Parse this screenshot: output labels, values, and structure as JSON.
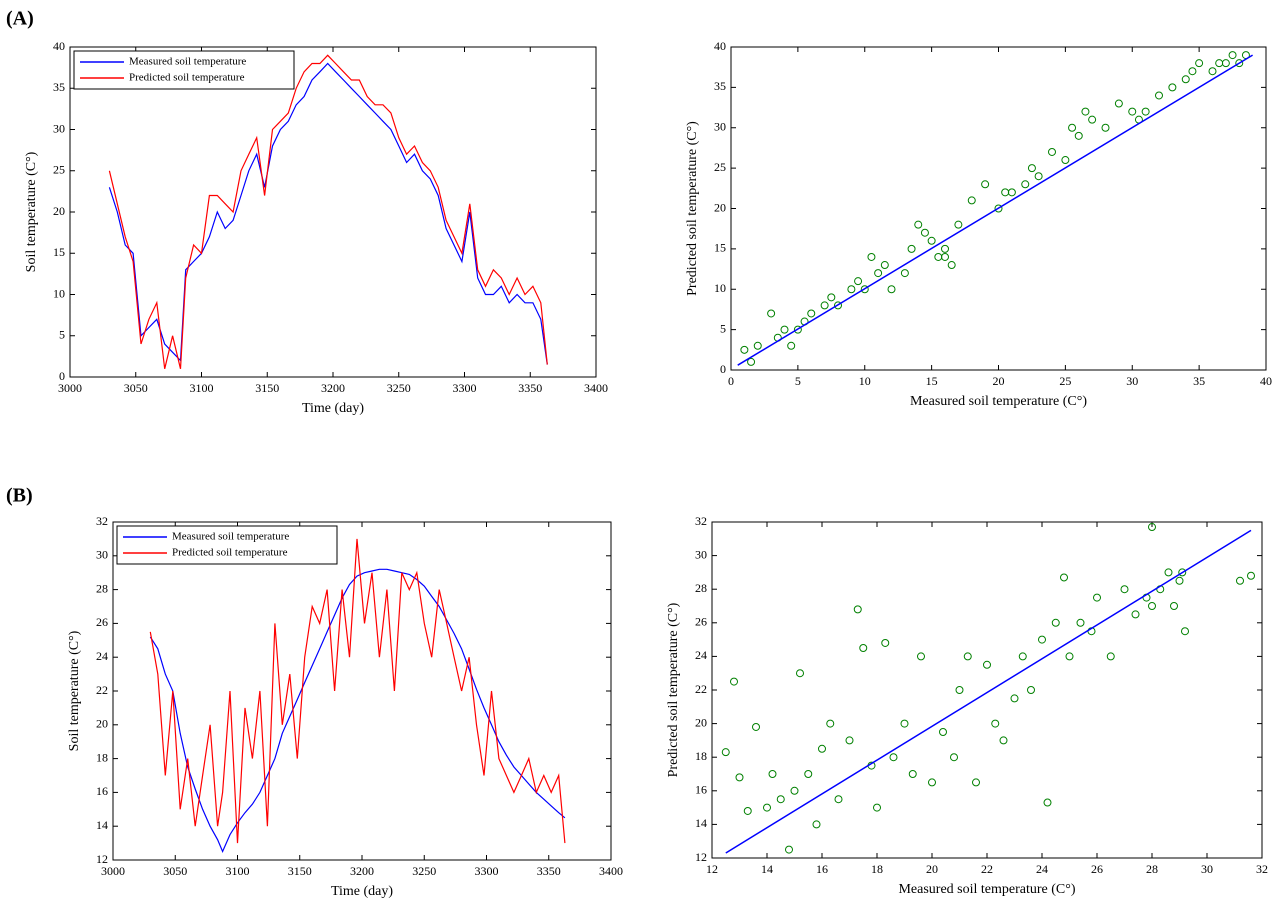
{
  "panel_labels": [
    "(A)",
    "(B)"
  ],
  "chart_data": [
    {
      "type": "line",
      "xlabel": "Time (day)",
      "ylabel": "Soil temperature (C°)",
      "xlim": [
        3000,
        3400
      ],
      "xticks": [
        3000,
        3050,
        3100,
        3150,
        3200,
        3250,
        3300,
        3350,
        3400
      ],
      "ylim": [
        0,
        40
      ],
      "yticks": [
        0,
        5,
        10,
        15,
        20,
        25,
        30,
        35,
        40
      ],
      "legend": "upper left",
      "x": [
        3030,
        3036,
        3042,
        3048,
        3054,
        3060,
        3066,
        3072,
        3078,
        3084,
        3088,
        3094,
        3100,
        3106,
        3112,
        3118,
        3124,
        3130,
        3136,
        3142,
        3148,
        3154,
        3160,
        3166,
        3172,
        3178,
        3184,
        3190,
        3196,
        3202,
        3208,
        3214,
        3220,
        3226,
        3232,
        3238,
        3244,
        3250,
        3256,
        3262,
        3268,
        3274,
        3280,
        3286,
        3292,
        3298,
        3304,
        3310,
        3316,
        3322,
        3328,
        3334,
        3340,
        3346,
        3352,
        3358,
        3363
      ],
      "series": [
        {
          "name": "Measured soil temperature",
          "color": "#0000ff",
          "values": [
            23,
            20,
            16,
            15,
            5,
            6,
            7,
            4,
            3,
            2,
            13,
            14,
            15,
            17,
            20,
            18,
            19,
            22,
            25,
            27,
            23,
            28,
            30,
            31,
            33,
            34,
            36,
            37,
            38,
            37,
            36,
            35,
            34,
            33,
            32,
            31,
            30,
            28,
            26,
            27,
            25,
            24,
            22,
            18,
            16,
            14,
            20,
            12,
            10,
            10,
            11,
            9,
            10,
            9,
            9,
            7,
            1.5
          ]
        },
        {
          "name": "Predicted soil temperature",
          "color": "#ff0000",
          "values": [
            25,
            21,
            17,
            14,
            4,
            7,
            9,
            1,
            5,
            1,
            12,
            16,
            15,
            22,
            22,
            21,
            20,
            25,
            27,
            29,
            22,
            30,
            31,
            32,
            35,
            37,
            38,
            38,
            39,
            38,
            37,
            36,
            36,
            34,
            33,
            33,
            32,
            29,
            27,
            28,
            26,
            25,
            23,
            19,
            17,
            15,
            21,
            13,
            11,
            13,
            12,
            10,
            12,
            10,
            11,
            9,
            1.5
          ]
        }
      ]
    },
    {
      "type": "scatter",
      "xlabel": "Measured soil temperature (C°)",
      "ylabel": "Predicted soil temperature (C°)",
      "xlim": [
        0,
        40
      ],
      "xticks": [
        0,
        5,
        10,
        15,
        20,
        25,
        30,
        35,
        40
      ],
      "ylim": [
        0,
        40
      ],
      "yticks": [
        0,
        5,
        10,
        15,
        20,
        25,
        30,
        35,
        40
      ],
      "series": [
        {
          "mode": "markers",
          "color": "#008000",
          "x": [
            1,
            1.5,
            2,
            3,
            3.5,
            4,
            4.5,
            5,
            5.5,
            6,
            7,
            7.5,
            8,
            9,
            9.5,
            10,
            10.5,
            11,
            11.5,
            12,
            13,
            13.5,
            14,
            14.5,
            15,
            15.5,
            16,
            16.5,
            17,
            18,
            19,
            20,
            20.5,
            21,
            22,
            22.5,
            23,
            24,
            25,
            25.5,
            26,
            27,
            28,
            29,
            30,
            30.5,
            31,
            32,
            33,
            34,
            34.5,
            35,
            36,
            36.5,
            37,
            37.5,
            38,
            38.5,
            26.5,
            16
          ],
          "values": [
            2.5,
            1,
            3,
            7,
            4,
            5,
            3,
            5,
            6,
            7,
            8,
            9,
            8,
            10,
            11,
            10,
            14,
            12,
            13,
            10,
            12,
            15,
            18,
            17,
            16,
            14,
            15,
            13,
            18,
            21,
            23,
            20,
            22,
            22,
            23,
            25,
            24,
            27,
            26,
            30,
            29,
            31,
            30,
            33,
            32,
            31,
            32,
            34,
            35,
            36,
            37,
            38,
            37,
            38,
            38,
            39,
            38,
            39,
            32,
            14
          ]
        },
        {
          "mode": "line",
          "color": "#0000ff",
          "x": [
            0.5,
            39
          ],
          "values": [
            0.6,
            39
          ]
        }
      ]
    },
    {
      "type": "line",
      "xlabel": "Time (day)",
      "ylabel": "Soil temperature (C°)",
      "xlim": [
        3000,
        3400
      ],
      "xticks": [
        3000,
        3050,
        3100,
        3150,
        3200,
        3250,
        3300,
        3350,
        3400
      ],
      "ylim": [
        12,
        32
      ],
      "yticks": [
        12,
        14,
        16,
        18,
        20,
        22,
        24,
        26,
        28,
        30,
        32
      ],
      "legend": "upper left",
      "x": [
        3030,
        3036,
        3042,
        3048,
        3054,
        3060,
        3066,
        3072,
        3078,
        3084,
        3088,
        3094,
        3100,
        3106,
        3112,
        3118,
        3124,
        3130,
        3136,
        3142,
        3148,
        3154,
        3160,
        3166,
        3172,
        3178,
        3184,
        3190,
        3196,
        3202,
        3208,
        3214,
        3220,
        3226,
        3232,
        3238,
        3244,
        3250,
        3256,
        3262,
        3268,
        3274,
        3280,
        3286,
        3292,
        3298,
        3304,
        3310,
        3316,
        3322,
        3328,
        3334,
        3340,
        3346,
        3352,
        3358,
        3363
      ],
      "series": [
        {
          "name": "Measured soil temperature",
          "color": "#0000ff",
          "values": [
            25.2,
            24.5,
            23,
            22,
            19.5,
            17.5,
            16.2,
            15,
            14,
            13.2,
            12.5,
            13.5,
            14.2,
            14.8,
            15.3,
            16,
            17,
            18,
            19.5,
            20.5,
            21.5,
            22.5,
            23.5,
            24.5,
            25.5,
            26.5,
            27.5,
            28.3,
            28.8,
            29,
            29.1,
            29.2,
            29.2,
            29.1,
            29,
            28.9,
            28.6,
            28.2,
            27.6,
            27,
            26.2,
            25.4,
            24.5,
            23.3,
            22.1,
            21,
            20,
            19,
            18.2,
            17.5,
            17,
            16.5,
            16,
            15.6,
            15.2,
            14.8,
            14.5
          ]
        },
        {
          "name": "Predicted soil temperature",
          "color": "#ff0000",
          "values": [
            25.5,
            23,
            17,
            22,
            15,
            18,
            14,
            17,
            20,
            14,
            16,
            22,
            13,
            21,
            18,
            22,
            14,
            26,
            20,
            23,
            18,
            24,
            27,
            26,
            28,
            22,
            28,
            24,
            31,
            26,
            29,
            24,
            28,
            22,
            29,
            28,
            29,
            26,
            24,
            28,
            26,
            24,
            22,
            24,
            20,
            17,
            22,
            18,
            17,
            16,
            17,
            18,
            16,
            17,
            16,
            17,
            13
          ]
        }
      ]
    },
    {
      "type": "scatter",
      "xlabel": "Measured soil temperature (C°)",
      "ylabel": "Predicted soil temperature (C°)",
      "xlim": [
        12,
        32
      ],
      "xticks": [
        12,
        14,
        16,
        18,
        20,
        22,
        24,
        26,
        28,
        30,
        32
      ],
      "ylim": [
        12,
        32
      ],
      "yticks": [
        12,
        14,
        16,
        18,
        20,
        22,
        24,
        26,
        28,
        30,
        32
      ],
      "series": [
        {
          "mode": "markers",
          "color": "#008000",
          "x": [
            12.5,
            12.8,
            13,
            13.3,
            13.6,
            14,
            14.2,
            14.5,
            14.8,
            15,
            15.2,
            15.5,
            15.8,
            16,
            16.3,
            16.6,
            17,
            17.3,
            17.5,
            17.8,
            18,
            18.3,
            18.6,
            19,
            19.3,
            19.6,
            20,
            20.4,
            20.8,
            21,
            21.3,
            21.6,
            22,
            22.3,
            22.6,
            23,
            23.3,
            23.6,
            24,
            24.2,
            24.5,
            24.8,
            25,
            25.4,
            25.8,
            26,
            26.5,
            27,
            27.4,
            27.8,
            28,
            28.3,
            28.6,
            28.8,
            29,
            29.1,
            29.2,
            28,
            31.2,
            31.6
          ],
          "values": [
            18.3,
            22.5,
            16.8,
            14.8,
            19.8,
            15,
            17,
            15.5,
            12.5,
            16,
            23,
            17,
            14,
            18.5,
            20,
            15.5,
            19,
            26.8,
            24.5,
            17.5,
            15,
            24.8,
            18,
            20,
            17,
            24,
            16.5,
            19.5,
            18,
            22,
            24,
            16.5,
            23.5,
            20,
            19,
            21.5,
            24,
            22,
            25,
            15.3,
            26,
            28.7,
            24,
            26,
            25.5,
            27.5,
            24,
            28,
            26.5,
            27.5,
            31.7,
            28,
            29,
            27,
            28.5,
            29,
            25.5,
            27,
            28.5,
            28.8
          ]
        },
        {
          "mode": "line",
          "color": "#0000ff",
          "x": [
            12.5,
            31.6
          ],
          "values": [
            12.3,
            31.5
          ]
        }
      ]
    }
  ]
}
